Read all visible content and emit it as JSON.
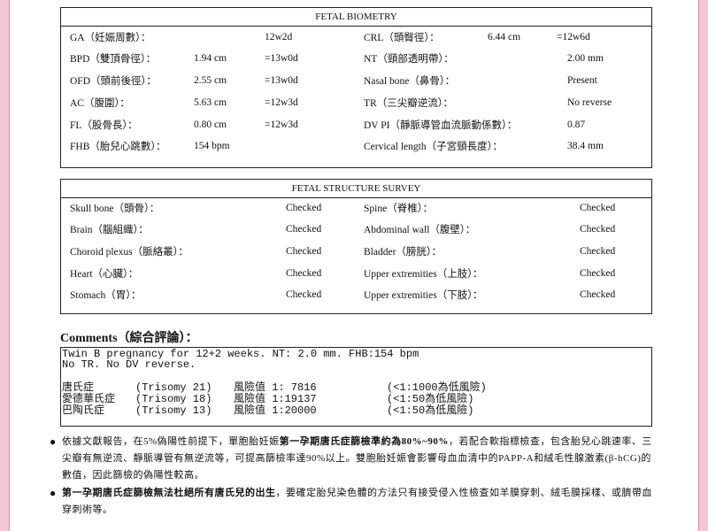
{
  "biometry": {
    "title": "FETAL BIOMETRY",
    "rows": [
      {
        "left": {
          "label": "GA（妊娠周數）：",
          "ga": "12w2d"
        },
        "right": {
          "label": "CRL（頭臀徑）：",
          "value": "6.44 cm",
          "ga": "=12w6d"
        }
      },
      {
        "left": {
          "label": "BPD（雙頂骨徑）：",
          "value": "1.94 cm",
          "ga": "=13w0d"
        },
        "right": {
          "label": "NT（頸部透明帶）：",
          "value": "2.00 mm"
        }
      },
      {
        "left": {
          "label": "OFD（頭前後徑）：",
          "value": "2.55 cm",
          "ga": "=13w0d"
        },
        "right": {
          "label": "Nasal bone（鼻骨）：",
          "value": "Present"
        }
      },
      {
        "left": {
          "label": "AC（腹圍）：",
          "value": "5.63 cm",
          "ga": "=12w3d"
        },
        "right": {
          "label": "TR（三尖瓣逆流）：",
          "value": "No reverse"
        }
      },
      {
        "left": {
          "label": "FL（股骨長）：",
          "value": "0.80 cm",
          "ga": "=12w3d"
        },
        "right": {
          "label": "DV PI（靜脈導管血流脈動係數）：",
          "value": "0.87"
        }
      },
      {
        "left": {
          "label": "FHB（胎兒心跳數）：",
          "value": "154 bpm"
        },
        "right": {
          "label": "Cervical length（子宮頸長度）：",
          "value": "38.4 mm"
        }
      }
    ]
  },
  "structure": {
    "title": "FETAL STRUCTURE SURVEY",
    "rows": [
      {
        "left": {
          "label": "Skull bone（頭骨）：",
          "status": "Checked"
        },
        "right": {
          "label": "Spine（脊椎）：",
          "status": "Checked"
        }
      },
      {
        "left": {
          "label": "Brain（腦組織）：",
          "status": "Checked"
        },
        "right": {
          "label": "Abdominal wall（腹壁）：",
          "status": "Checked"
        }
      },
      {
        "left": {
          "label": "Choroid plexus（脈絡叢）：",
          "status": "Checked"
        },
        "right": {
          "label": "Bladder（膀胱）：",
          "status": "Checked"
        }
      },
      {
        "left": {
          "label": "Heart（心臟）：",
          "status": "Checked"
        },
        "right": {
          "label": "Upper extremities（上肢）：",
          "status": "Checked"
        }
      },
      {
        "left": {
          "label": "Stomach（胃）：",
          "status": "Checked"
        },
        "right": {
          "label": "Upper extremities（下肢）：",
          "status": "Checked"
        }
      }
    ]
  },
  "comments": {
    "title": "Comments（綜合評論）：",
    "lines": [
      "Twin B pregnancy for 12+2 weeks. NT: 2.0 mm. FHB:154 bpm",
      "No TR. No DV reverse."
    ],
    "risks": [
      {
        "name": "唐氏症",
        "trisomy": "(Trisomy 21)",
        "risk": "風險值 1: 7816",
        "threshold": "(<1:1000為低風險)"
      },
      {
        "name": "愛德華氏症",
        "trisomy": "(Trisomy 18)",
        "risk": "風險值 1:19137",
        "threshold": "(<1:50為低風險)"
      },
      {
        "name": "巴陶氏症",
        "trisomy": "(Trisomy 13)",
        "risk": "風險值 1:20000",
        "threshold": "(<1:50為低風險)"
      }
    ]
  },
  "notes": [
    [
      {
        "text": "依據文獻報告，在5%偽陽性前提下，單胞胎妊娠"
      },
      {
        "text": "第一孕期唐氏症篩檢準約為80%~90%",
        "bold": true
      },
      {
        "text": "，若配合軟指標檢查，包含胎兒心跳速率、三尖瓣有無逆流、靜脈導管有無逆流等，可提高篩檢率達90%以上。雙胞胎妊娠會影響母血血清中的PAPP-A和絨毛性腺激素(β-hCG)的數值，因此篩檢的偽陽性較高。"
      }
    ],
    [
      {
        "text": "第一孕期唐氏症篩檢無法杜絕所有唐氏兒的出生",
        "bold": true
      },
      {
        "text": "，要確定胎兒染色體的方法只有接受侵入性檢查如羊膜穿刺、絨毛膜採樣、或臍帶血穿刺術等。"
      }
    ]
  ]
}
